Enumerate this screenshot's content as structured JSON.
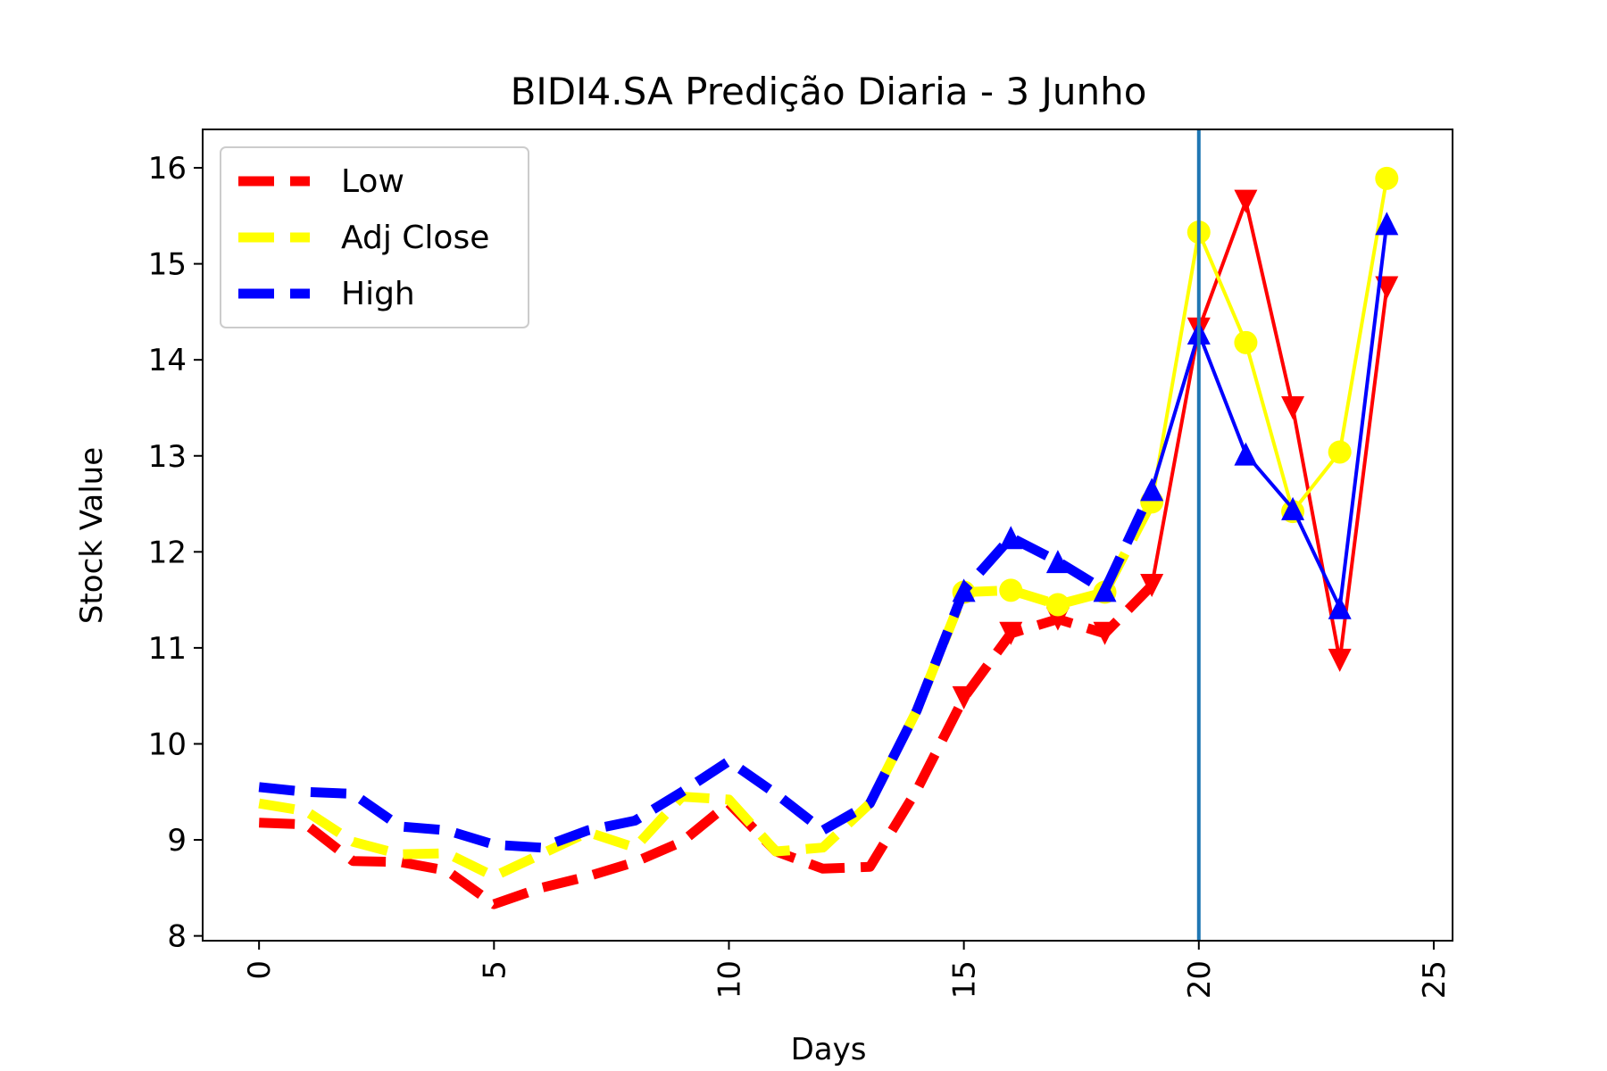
{
  "chart_data": {
    "type": "line",
    "title": "BIDI4.SA Predição Diaria - 3 Junho",
    "xlabel": "Days",
    "ylabel": "Stock Value",
    "xlim": [
      -1.2,
      25.4
    ],
    "ylim": [
      7.95,
      16.4
    ],
    "x_ticks": [
      0,
      5,
      10,
      15,
      20,
      25
    ],
    "x_tick_labels": [
      "0",
      "5",
      "10",
      "15",
      "20",
      "25"
    ],
    "y_ticks": [
      8,
      9,
      10,
      11,
      12,
      13,
      14,
      15,
      16
    ],
    "y_tick_labels": [
      "8",
      "9",
      "10",
      "11",
      "12",
      "13",
      "14",
      "15",
      "16"
    ],
    "x_tick_rotation": 90,
    "grid": false,
    "legend_position": "top-left",
    "vertical_line": {
      "x": 20,
      "color": "#1f77b4"
    },
    "series": [
      {
        "name": "Low",
        "color": "#ff0000",
        "historical": {
          "x": [
            0,
            1,
            2,
            3,
            4,
            5,
            6,
            7,
            8,
            9,
            10,
            11,
            12,
            13,
            14,
            15,
            16,
            17,
            18,
            19
          ],
          "y": [
            9.18,
            9.16,
            8.78,
            8.77,
            8.68,
            8.33,
            8.5,
            8.62,
            8.77,
            8.98,
            9.38,
            8.88,
            8.7,
            8.72,
            9.52,
            10.48,
            11.15,
            11.3,
            11.15,
            11.65
          ]
        },
        "predicted": {
          "x": [
            20,
            21,
            22,
            23,
            24
          ],
          "y": [
            14.32,
            15.65,
            13.5,
            10.87,
            14.75
          ]
        },
        "marker": "triangle-down"
      },
      {
        "name": "Adj Close",
        "color": "#ffff00",
        "historical": {
          "x": [
            0,
            1,
            2,
            3,
            4,
            5,
            6,
            7,
            8,
            9,
            10,
            11,
            12,
            13,
            14,
            15,
            16,
            17,
            18,
            19
          ],
          "y": [
            9.38,
            9.3,
            8.98,
            8.85,
            8.86,
            8.62,
            8.85,
            9.08,
            8.92,
            9.45,
            9.42,
            8.88,
            8.92,
            9.38,
            10.35,
            11.58,
            11.6,
            11.45,
            11.58,
            12.52
          ]
        },
        "predicted": {
          "x": [
            20,
            21,
            22,
            23,
            24
          ],
          "y": [
            15.33,
            14.18,
            12.42,
            13.04,
            15.89
          ]
        },
        "marker": "circle"
      },
      {
        "name": "High",
        "color": "#0000ff",
        "historical": {
          "x": [
            0,
            1,
            2,
            3,
            4,
            5,
            6,
            7,
            8,
            9,
            10,
            11,
            12,
            13,
            14,
            15,
            16,
            17,
            18,
            19
          ],
          "y": [
            9.55,
            9.5,
            9.48,
            9.14,
            9.1,
            8.95,
            8.92,
            9.1,
            9.2,
            9.5,
            9.82,
            9.48,
            9.1,
            9.38,
            10.35,
            11.6,
            12.15,
            11.9,
            11.6,
            12.65
          ]
        },
        "predicted": {
          "x": [
            20,
            21,
            22,
            23,
            24
          ],
          "y": [
            14.28,
            13.02,
            12.45,
            11.42,
            15.42
          ]
        },
        "marker": "triangle-up"
      }
    ]
  }
}
